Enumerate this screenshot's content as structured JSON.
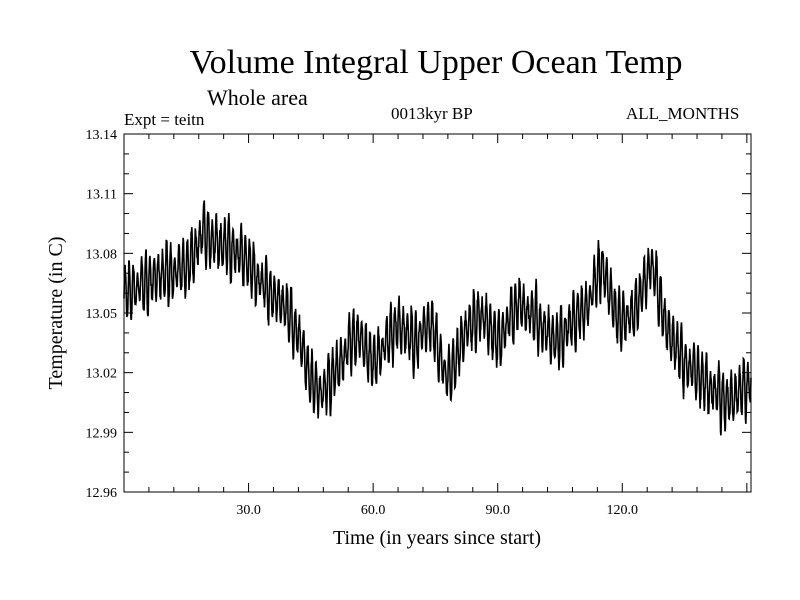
{
  "chart_data": {
    "type": "line",
    "title": "Volume Integral Upper Ocean Temp",
    "subtitle": "Whole area",
    "annotations": {
      "experiment": "Expt = teitn",
      "period": "0013kyr BP",
      "months": "ALL_MONTHS"
    },
    "xlabel": "Time (in years since start)",
    "ylabel": "Temperature (in C)",
    "xlim": [
      0,
      151
    ],
    "ylim": [
      12.96,
      13.14
    ],
    "x_ticks": [
      {
        "value": 30,
        "label": "30.0"
      },
      {
        "value": 60,
        "label": "60.0"
      },
      {
        "value": 90,
        "label": "90.0"
      },
      {
        "value": 120,
        "label": "120.0"
      }
    ],
    "y_ticks": [
      {
        "value": 12.96,
        "label": "12.96"
      },
      {
        "value": 12.99,
        "label": "12.99"
      },
      {
        "value": 13.02,
        "label": "13.02"
      },
      {
        "value": 13.05,
        "label": "13.05"
      },
      {
        "value": 13.08,
        "label": "13.08"
      },
      {
        "value": 13.11,
        "label": "13.11"
      },
      {
        "value": 13.14,
        "label": "13.14"
      }
    ],
    "series": [
      {
        "name": "Volume Integral Upper Ocean Temp",
        "color": "#000000",
        "annual_cycle_amplitude": 0.012,
        "trend": {
          "x": [
            0,
            5,
            10,
            15,
            19,
            23,
            28,
            33,
            38,
            42,
            45,
            48,
            52,
            56,
            60,
            66,
            70,
            74,
            78,
            82,
            86,
            90,
            95,
            100,
            104,
            108,
            112,
            115,
            119,
            123,
            127,
            131,
            135,
            140,
            145,
            151
          ],
          "y": [
            13.06,
            13.065,
            13.07,
            13.072,
            13.09,
            13.085,
            13.08,
            13.065,
            13.055,
            13.04,
            13.015,
            13.01,
            13.025,
            13.04,
            13.025,
            13.045,
            13.035,
            13.045,
            13.015,
            13.04,
            13.05,
            13.035,
            13.055,
            13.045,
            13.035,
            13.045,
            13.055,
            13.075,
            13.045,
            13.05,
            13.075,
            13.04,
            13.025,
            13.015,
            13.005,
            13.015
          ]
        }
      }
    ]
  }
}
